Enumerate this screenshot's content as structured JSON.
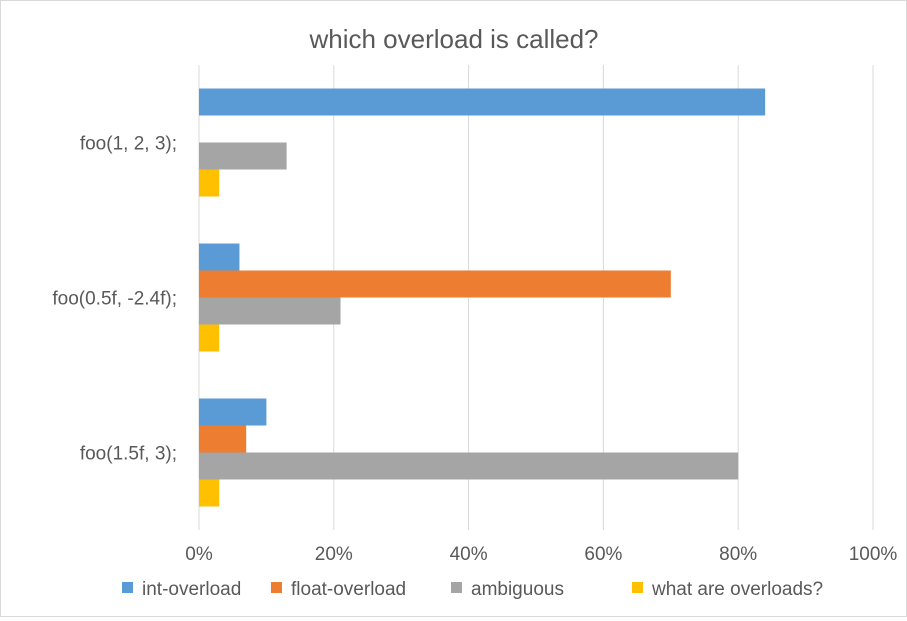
{
  "chart_data": {
    "type": "bar",
    "orientation": "horizontal",
    "title": "which overload is called?",
    "xlabel": "",
    "ylabel": "",
    "xlim": [
      0,
      100
    ],
    "x_ticks": [
      "0%",
      "20%",
      "40%",
      "60%",
      "80%",
      "100%"
    ],
    "grid": true,
    "legend_position": "bottom",
    "categories": [
      "foo(1, 2, 3);",
      "foo(0.5f, -2.4f);",
      "foo(1.5f, 3);"
    ],
    "series": [
      {
        "name": "int-overload",
        "color": "#5b9bd5",
        "values": [
          84,
          6,
          10
        ]
      },
      {
        "name": "float-overload",
        "color": "#ed7d31",
        "values": [
          0,
          70,
          7
        ]
      },
      {
        "name": "ambiguous",
        "color": "#a5a5a5",
        "values": [
          13,
          21,
          80
        ]
      },
      {
        "name": "what are overloads?",
        "color": "#ffc000",
        "values": [
          3,
          3,
          3
        ]
      }
    ]
  }
}
